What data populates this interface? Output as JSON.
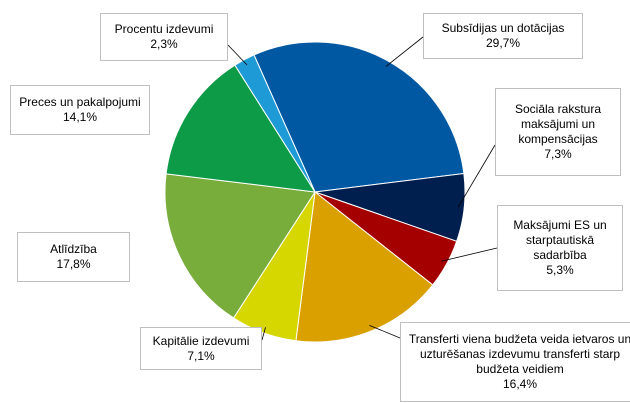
{
  "chart_data": {
    "type": "pie",
    "categories": [
      "Subsīdijas un dotācijas",
      "Sociāla rakstura maksājumi un kompensācijas",
      "Maksājumi ES un starptautiskā sadarbība",
      "Transferti viena budžeta veida ietvaros un uzturēšanas izdevumu transferti starp budžeta veidiem",
      "Kapitālie izdevumi",
      "Atlīdzība",
      "Preces un pakalpojumi",
      "Procentu izdevumi"
    ],
    "values": [
      29.7,
      7.3,
      5.3,
      16.4,
      7.1,
      17.8,
      14.1,
      2.3
    ],
    "value_labels": [
      "29,7%",
      "7,3%",
      "5,3%",
      "16,4%",
      "7,1%",
      "17,8%",
      "14,1%",
      "2,3%"
    ],
    "colors": [
      "#0058a3",
      "#001f4e",
      "#a50000",
      "#d9a000",
      "#d6d600",
      "#78ad3c",
      "#0e9b48",
      "#1e9bd7"
    ]
  }
}
